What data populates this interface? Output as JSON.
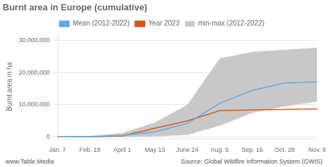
{
  "chart_data": {
    "type": "line",
    "title": "Burnt area in Europe (cumulative)",
    "y_label": "Burnt area in ha",
    "annotations": [
      "www.Table.Media",
      "Source: Global Wildfire Information System (GWIS)"
    ],
    "categories": [
      "Jan. 7",
      "Feb. 18",
      "April 1",
      "May 13",
      "June 24",
      "Aug. 5",
      "Sep. 16",
      "Oct. 28",
      "Nov. 9"
    ],
    "series": [
      {
        "name": "min-max (2012-2022)",
        "type": "band",
        "color": "#c8c8c8",
        "min": [
          5000,
          10000,
          30000,
          150000,
          600000,
          3500000,
          7500000,
          9500000,
          11000000
        ],
        "max": [
          150000,
          300000,
          1200000,
          4500000,
          10000000,
          24500000,
          26500000,
          27200000,
          27800000
        ]
      },
      {
        "name": "Mean (2012-2022)",
        "type": "line",
        "color": "#5aabec",
        "values": [
          30000,
          60000,
          450000,
          1600000,
          4200000,
          10500000,
          14500000,
          16800000,
          17200000
        ]
      },
      {
        "name": "Year 2023",
        "type": "line",
        "color": "#d9541e",
        "values": [
          10000,
          30000,
          300000,
          2700000,
          5000000,
          8200000,
          8400000,
          8600000,
          8750000
        ]
      }
    ],
    "ylim": [
      -600000,
      32000000
    ],
    "yticks": [
      0,
      {
        "value": 10000000,
        "label": "10,000,000"
      },
      {
        "value": 20000000,
        "label": "20,000,000"
      },
      {
        "value": 30000000,
        "label": "30,000,000"
      }
    ],
    "grid": true,
    "legend": "top"
  }
}
